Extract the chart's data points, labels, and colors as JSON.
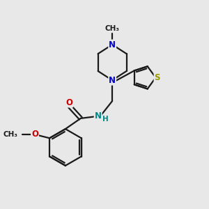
{
  "bg_color": "#e8e8e8",
  "bond_color": "#1a1a1a",
  "N_color": "#0000cc",
  "O_color": "#cc0000",
  "S_color": "#999900",
  "NH_color": "#008888",
  "figsize": [
    3.0,
    3.0
  ],
  "dpi": 100,
  "xlim": [
    0,
    10
  ],
  "ylim": [
    0,
    10
  ]
}
